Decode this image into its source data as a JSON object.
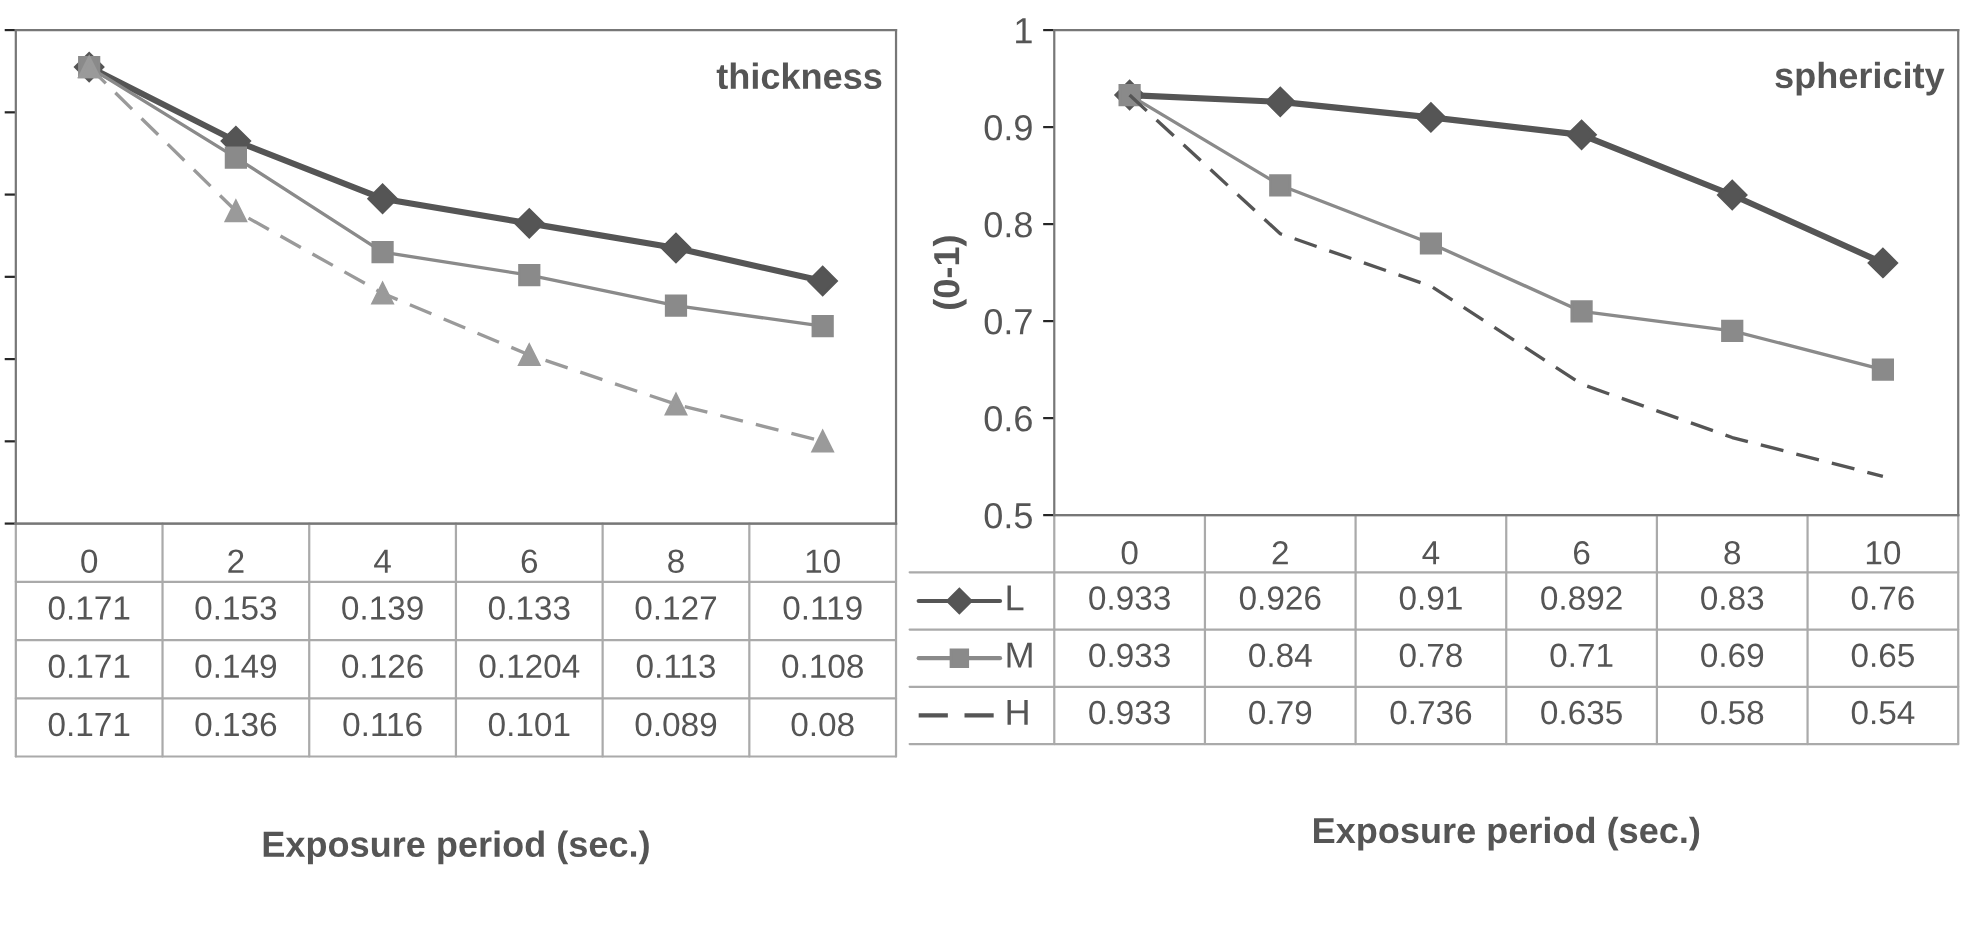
{
  "chart_data": [
    {
      "type": "line",
      "title": "thickness",
      "xlabel": "Exposure period (sec.)",
      "categories": [
        "0",
        "2",
        "4",
        "6",
        "8",
        "10"
      ],
      "tick_labels": "x",
      "data_labels": true,
      "series": [
        {
          "color": "#555555",
          "marker": "diamond",
          "line_style": "solid",
          "values": [
            0.171,
            0.153,
            0.139,
            0.133,
            0.127,
            0.119
          ]
        },
        {
          "color": "#8a8a8a",
          "marker": "square",
          "line_style": "solid",
          "values": [
            0.171,
            0.149,
            0.126,
            0.1204,
            0.113,
            0.108
          ]
        },
        {
          "color": "#9a9a9a",
          "marker": "triangle",
          "line_style": "dashed",
          "values": [
            0.171,
            0.136,
            0.116,
            0.101,
            0.089,
            0.08
          ]
        }
      ]
    },
    {
      "type": "line",
      "title": "sphericity",
      "xlabel": "Exposure period (sec.)",
      "ylabel": "(0-1)",
      "categories": [
        "0",
        "2",
        "4",
        "6",
        "8",
        "10"
      ],
      "ylim": [
        0.5,
        1
      ],
      "yticks": [
        0.5,
        0.6,
        0.7,
        0.8,
        0.9,
        1
      ],
      "data_labels": true,
      "legend": "left",
      "series": [
        {
          "name": "L",
          "color": "#555555",
          "marker": "diamond",
          "line_style": "solid",
          "values": [
            0.933,
            0.926,
            0.91,
            0.892,
            0.83,
            0.76
          ]
        },
        {
          "name": "M",
          "color": "#8a8a8a",
          "marker": "square",
          "line_style": "solid",
          "values": [
            0.933,
            0.84,
            0.78,
            0.71,
            0.69,
            0.65
          ]
        },
        {
          "name": "H",
          "color": "#555555",
          "marker": "none",
          "line_style": "dashed",
          "values": [
            0.933,
            0.79,
            0.736,
            0.635,
            0.58,
            0.54
          ]
        }
      ]
    }
  ]
}
